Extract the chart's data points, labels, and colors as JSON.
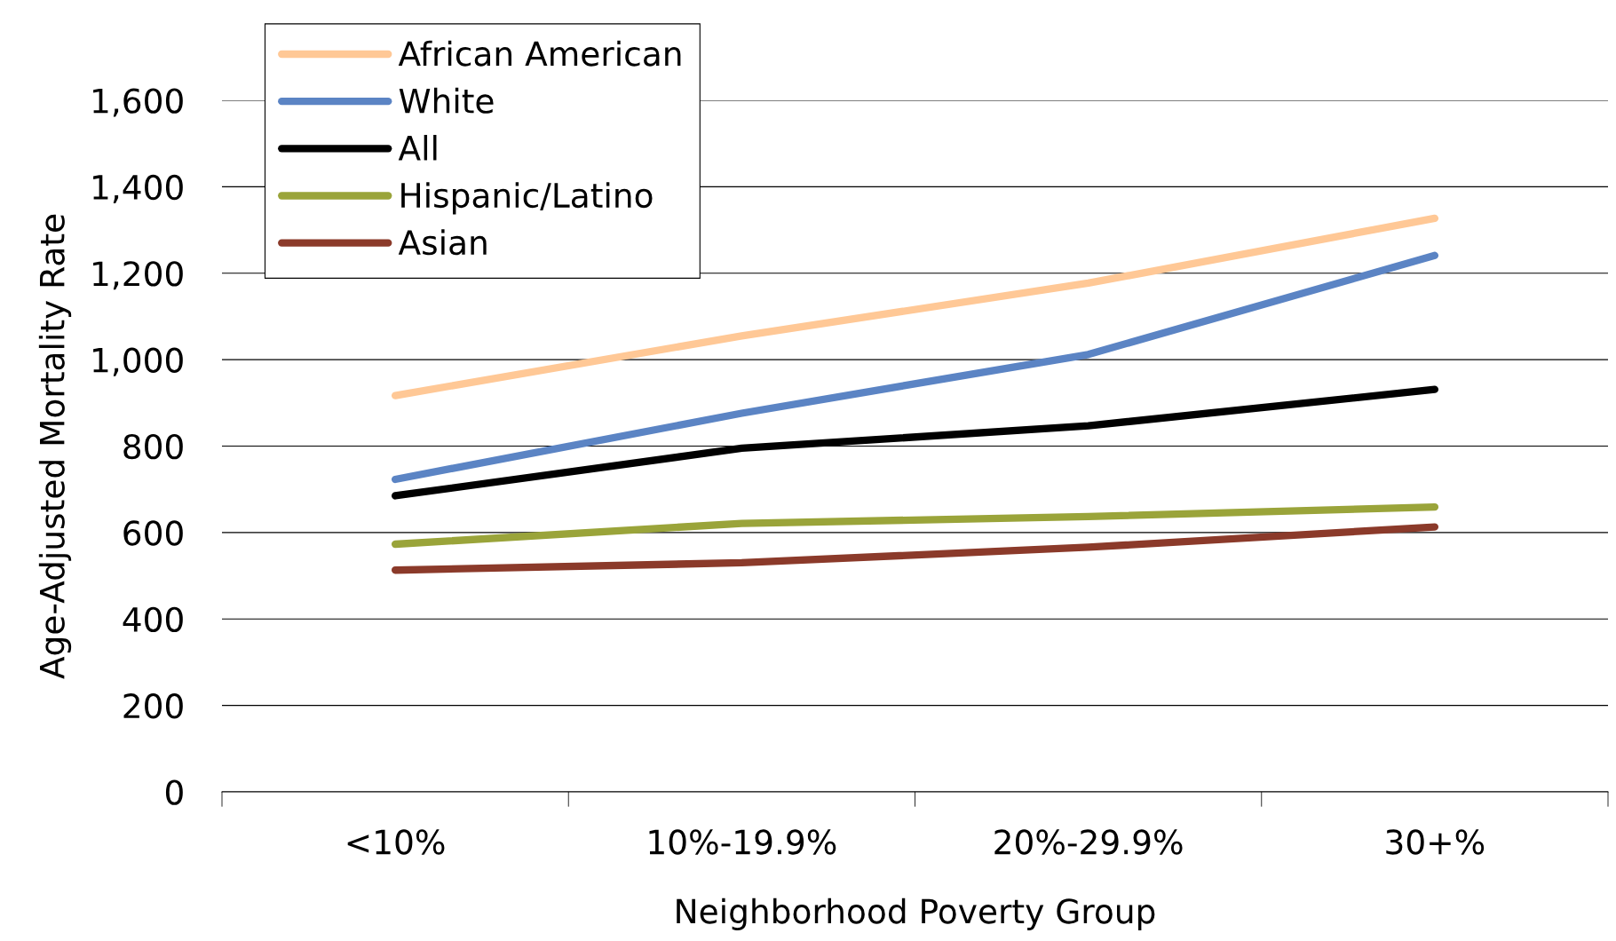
{
  "chart_data": {
    "type": "line",
    "xlabel": "Neighborhood Poverty Group",
    "ylabel": "Age-Adjusted Mortality Rate",
    "categories": [
      "<10%",
      "10%-19.9%",
      "20%-29.9%",
      "30+%"
    ],
    "series": [
      {
        "name": "African American",
        "color": "#ffc896",
        "values": [
          917,
          1055,
          1177,
          1327
        ]
      },
      {
        "name": "White",
        "color": "#5b84c4",
        "values": [
          723,
          876,
          1012,
          1241
        ]
      },
      {
        "name": "All",
        "color": "#000000",
        "values": [
          685,
          795,
          847,
          931
        ]
      },
      {
        "name": "Hispanic/Latino",
        "color": "#9aa43a",
        "values": [
          573,
          621,
          637,
          659
        ]
      },
      {
        "name": "Asian",
        "color": "#8b3a2a",
        "values": [
          513,
          530,
          566,
          613
        ]
      }
    ],
    "ylim": [
      0,
      1600
    ],
    "yticks": [
      {
        "value": 0,
        "label": "0"
      },
      {
        "value": 200,
        "label": "200"
      },
      {
        "value": 400,
        "label": "400"
      },
      {
        "value": 600,
        "label": "600"
      },
      {
        "value": 800,
        "label": "800"
      },
      {
        "value": 1000,
        "label": "1,000"
      },
      {
        "value": 1200,
        "label": "1,200"
      },
      {
        "value": 1400,
        "label": "1,400"
      },
      {
        "value": 1600,
        "label": "1,600"
      }
    ],
    "grid": "y",
    "legend": "top left",
    "marker": "none",
    "line_style": "solid"
  }
}
